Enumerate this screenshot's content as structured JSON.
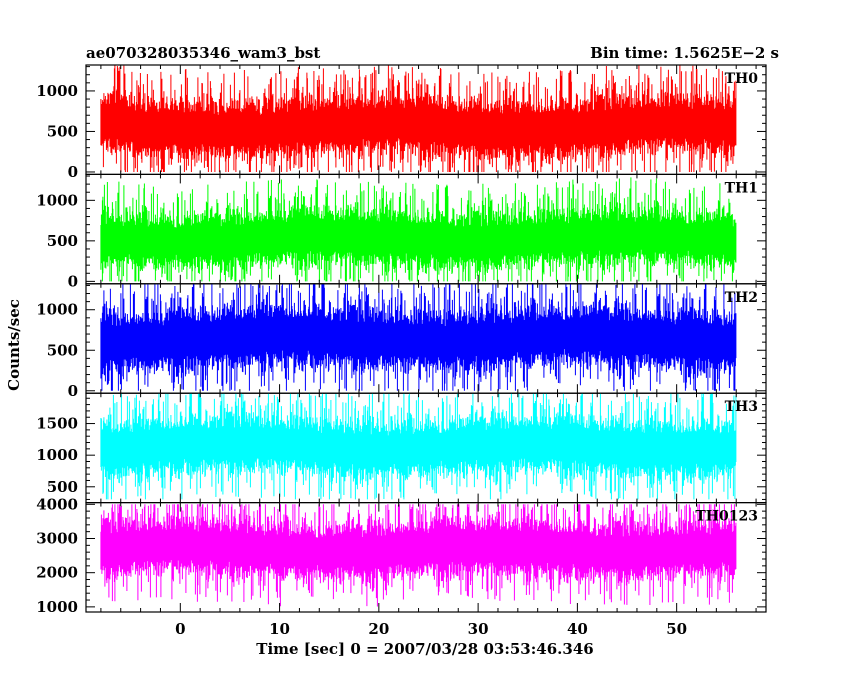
{
  "header": {
    "title_left": "ae070328035346_wam3_bst",
    "title_right": "Bin time: 1.5625E−2 s"
  },
  "axes": {
    "xlabel": "Time [sec] 0 = 2007/03/28 03:53:46.346",
    "ylabel": "Counts/sec"
  },
  "chart_data": {
    "type": "line",
    "title": "ae070328035346_wam3_bst",
    "subtitle": "Bin time: 1.5625E−2 s",
    "xlabel": "Time [sec] 0 = 2007/03/28 03:53:46.346",
    "ylabel": "Counts/sec",
    "xlim": [
      -9.5,
      59
    ],
    "x_start": -8,
    "x_end": 56,
    "bin_time": 0.015625,
    "x_ticks": [
      0,
      10,
      20,
      30,
      40,
      50
    ],
    "x_tick_labels": [
      "0",
      "10",
      "20",
      "30",
      "40",
      "50"
    ],
    "grid": false,
    "panels": [
      {
        "name": "TH0",
        "color": "#ff0000",
        "ylim": [
          -30,
          1320
        ],
        "y_ticks": [
          0,
          500,
          1000
        ],
        "y_tick_labels": [
          "0",
          "500",
          "1000"
        ],
        "mean": 560,
        "approx_range": [
          0,
          1350
        ]
      },
      {
        "name": "TH1",
        "color": "#00ff00",
        "ylim": [
          -30,
          1320
        ],
        "y_ticks": [
          0,
          500,
          1000
        ],
        "y_tick_labels": [
          "0",
          "500",
          "1000"
        ],
        "mean": 530,
        "approx_range": [
          0,
          1300
        ]
      },
      {
        "name": "TH2",
        "color": "#0000ff",
        "ylim": [
          -30,
          1320
        ],
        "y_ticks": [
          0,
          500,
          1000
        ],
        "y_tick_labels": [
          "0",
          "500",
          "1000"
        ],
        "mean": 650,
        "approx_range": [
          0,
          1400
        ]
      },
      {
        "name": "TH3",
        "color": "#00ffff",
        "ylim": [
          250,
          1980
        ],
        "y_ticks": [
          500,
          1000,
          1500
        ],
        "y_tick_labels": [
          "500",
          "1000",
          "1500"
        ],
        "mean": 1140,
        "approx_range": [
          300,
          2000
        ]
      },
      {
        "name": "TH0123",
        "color": "#ff00ff",
        "ylim": [
          850,
          4050
        ],
        "y_ticks": [
          1000,
          2000,
          3000,
          4000
        ],
        "y_tick_labels": [
          "1000",
          "2000",
          "3000",
          "4000"
        ],
        "mean": 2700,
        "approx_range": [
          900,
          4000
        ]
      }
    ]
  }
}
